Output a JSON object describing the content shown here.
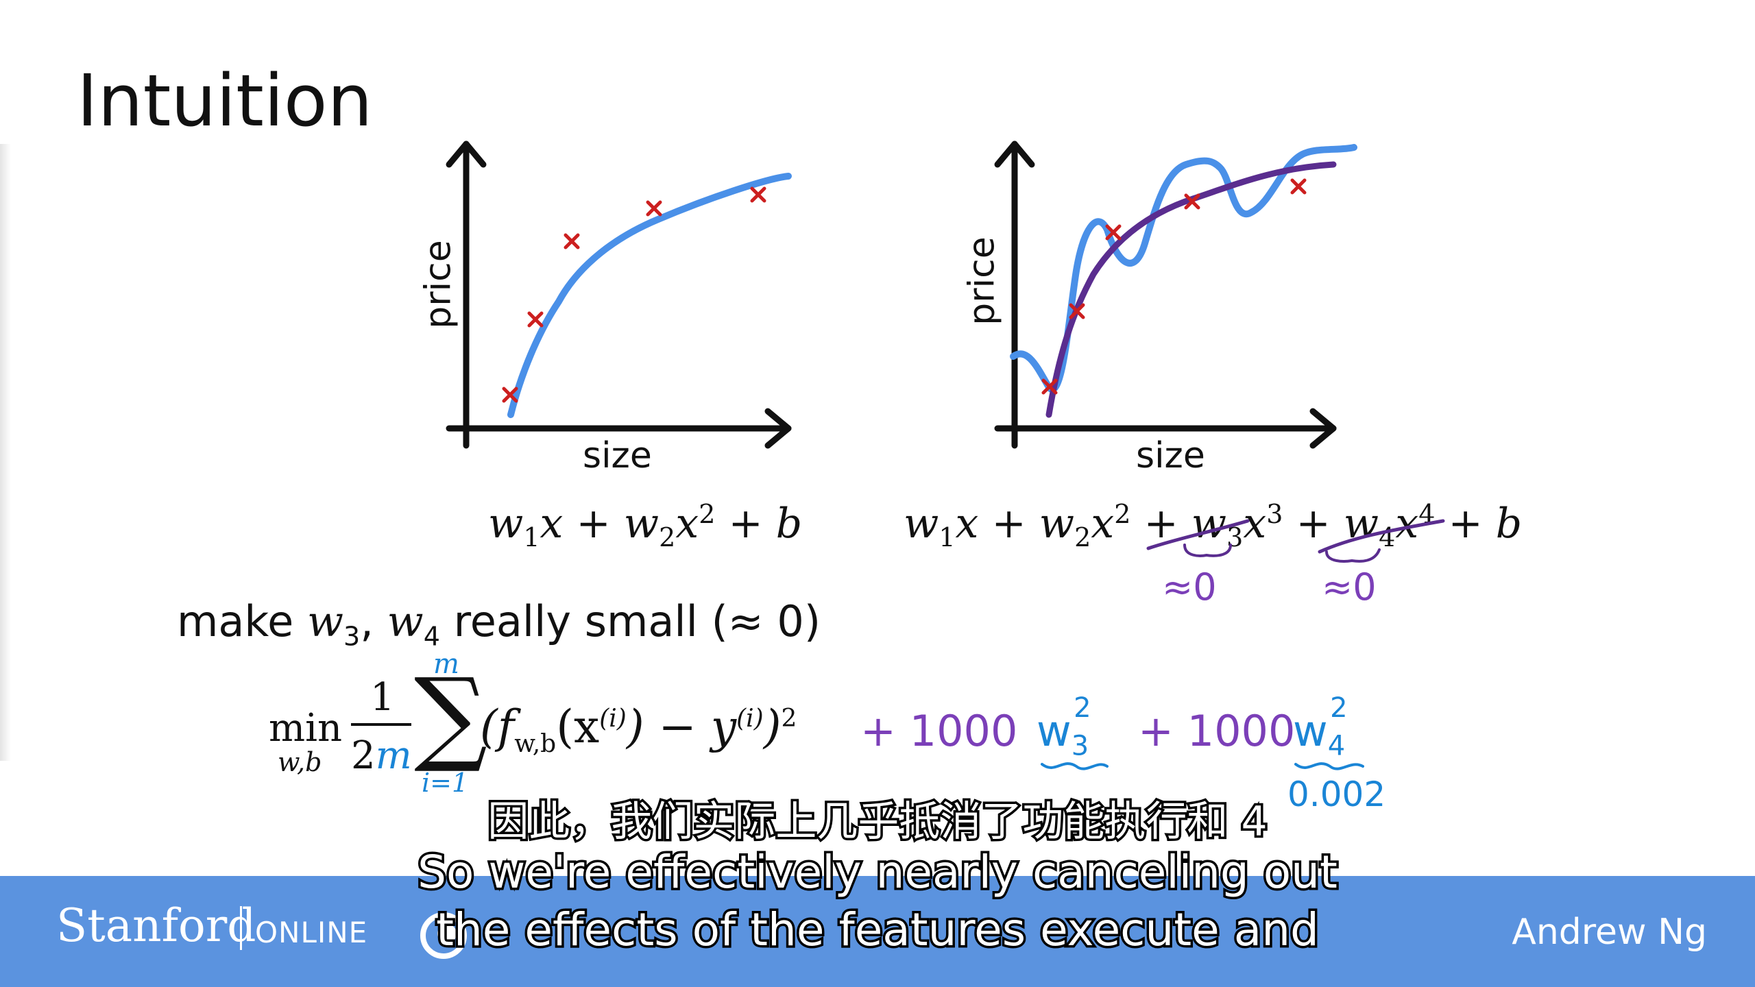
{
  "slide": {
    "title": "Intuition",
    "left_plot": {
      "ylabel": "price",
      "xlabel": "size",
      "equation": {
        "w1": "w",
        "t1": "1",
        "x1": "x + w",
        "t2": "2",
        "x2": "x",
        "p2": "2",
        "b": " + b"
      }
    },
    "right_plot": {
      "ylabel": "price",
      "xlabel": "size",
      "equation": {
        "part1": "w",
        "s1": "1",
        "part2": "x + w",
        "s2": "2",
        "part3": "x",
        "p2": "2",
        "part4": " + w",
        "s3": "3",
        "part5": "x",
        "p3": "3",
        "part6": " + w",
        "s4": "4",
        "part7": "x",
        "p4": "4",
        "part8": " + b"
      },
      "approx_w3": "≈0",
      "approx_w4": "≈0"
    },
    "line3": {
      "text1": "make ",
      "w3": "w",
      "s3": "3",
      "comma": ", ",
      "w4": "w",
      "s4": "4",
      "text2": " really small (≈ 0)"
    },
    "cost": {
      "min": "min",
      "min_sub": "w,b",
      "frac_num": "1",
      "frac_den_num": "2",
      "frac_den_m": "m",
      "sum_top": "m",
      "sum_bottom": "i=1",
      "body1": "(f",
      "body_sub": "w,b",
      "body2": "(x",
      "body_sup_i": "(i)",
      "body3": ") − y",
      "body_sup_i2": "(i)",
      "body4": ")",
      "body_sq": "2",
      "penalty1_coef": "+ 1000",
      "penalty1_w": "w",
      "penalty1_sub": "3",
      "penalty1_sup": "2",
      "penalty2_coef": "+ 1000",
      "penalty2_w": "w",
      "penalty2_sub": "4",
      "penalty2_sup": "2",
      "penalty2_value": "0.002"
    },
    "colors": {
      "purple": "#7b3fb8",
      "blue": "#1a85d6",
      "curve_blue": "#4a90e8",
      "curve_purple": "#5a2d8f",
      "marker_red": "#cc1f1f"
    }
  },
  "subtitles": {
    "zh": "因此，我们实际上几乎抵消了功能执行和 4",
    "en1": "So we're effectively nearly canceling out",
    "en2": "the effects of the features execute and"
  },
  "footer": {
    "brand": "Stanford",
    "brand_online": "ONLINE",
    "presenter": "Andrew Ng",
    "footer_color": "#5b93df"
  }
}
